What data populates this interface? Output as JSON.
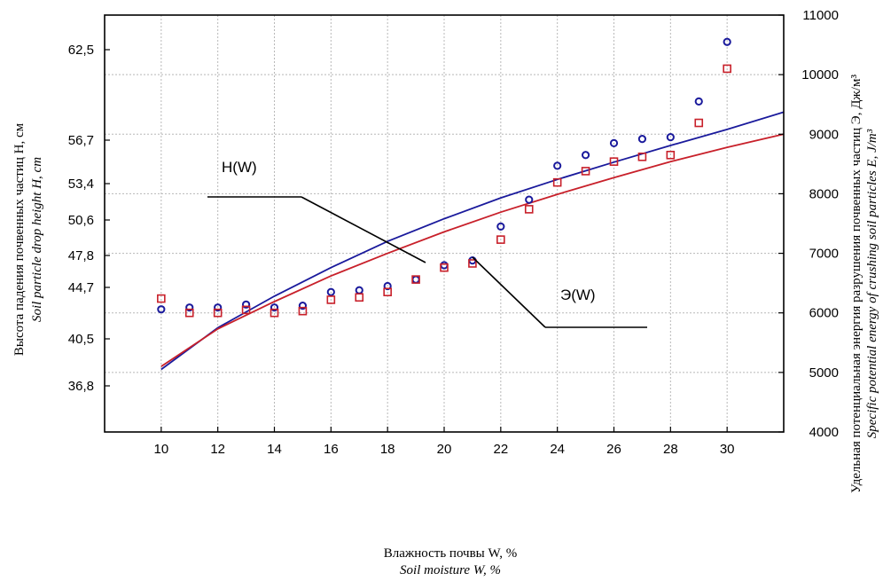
{
  "chart_data": {
    "type": "scatter",
    "x_axis": {
      "ticks": [
        10,
        12,
        14,
        16,
        18,
        20,
        22,
        24,
        26,
        28,
        30
      ],
      "range": [
        8,
        32
      ],
      "label_ru": "Влажность почвы W, %",
      "label_en": "Soil moisture W, %"
    },
    "y_left": {
      "tick_labels": [
        "62,5",
        "56,7",
        "53,4",
        "50,6",
        "47,8",
        "44,7",
        "40,5",
        "36,8"
      ],
      "label_ru": "Высота падения почвенных частиц H, см",
      "label_en": "Soil particle drop height H, cm"
    },
    "y_right": {
      "ticks": [
        4000,
        5000,
        6000,
        7000,
        8000,
        9000,
        10000,
        11000
      ],
      "range": [
        4000,
        11000
      ],
      "label_ru": "Удельная потенциальная энергия разрушения почвенных частиц Э, Дж/м³",
      "label_en": "Specific potential energy of crushing soil particles E, J/m³"
    },
    "grid": true,
    "series": [
      {
        "name": "H(W)",
        "color": "#1a1a9c",
        "marker": "circle",
        "x": [
          10,
          11,
          12,
          13,
          14,
          15,
          16,
          17,
          18,
          19,
          20,
          21,
          22,
          23,
          24,
          25,
          26,
          27,
          28,
          29,
          30
        ],
        "y": [
          6060,
          6090,
          6090,
          6140,
          6090,
          6120,
          6350,
          6380,
          6450,
          6560,
          6800,
          6880,
          7450,
          7900,
          8470,
          8650,
          8850,
          8920,
          8950,
          9550,
          10550
        ],
        "fit": {
          "x": [
            10,
            12,
            14,
            16,
            18,
            20,
            22,
            24,
            26,
            28,
            30,
            32
          ],
          "y": [
            5050,
            5750,
            6280,
            6760,
            7200,
            7580,
            7930,
            8240,
            8530,
            8810,
            9080,
            9370
          ]
        }
      },
      {
        "name": "Э(W)",
        "color": "#c8202a",
        "marker": "square",
        "x": [
          10,
          11,
          12,
          13,
          14,
          15,
          16,
          17,
          18,
          19,
          20,
          21,
          22,
          23,
          24,
          25,
          26,
          27,
          28,
          29,
          30
        ],
        "y": [
          6240,
          6000,
          6000,
          6050,
          6000,
          6030,
          6220,
          6260,
          6350,
          6560,
          6760,
          6830,
          7230,
          7740,
          8190,
          8380,
          8540,
          8620,
          8650,
          9190,
          10100
        ],
        "fit": {
          "x": [
            10,
            12,
            14,
            16,
            18,
            20,
            22,
            24,
            26,
            28,
            30,
            32
          ],
          "y": [
            5100,
            5730,
            6190,
            6620,
            7000,
            7360,
            7690,
            7990,
            8270,
            8540,
            8780,
            9000
          ]
        }
      }
    ],
    "annotations": [
      "H(W)",
      "Э(W)"
    ]
  }
}
